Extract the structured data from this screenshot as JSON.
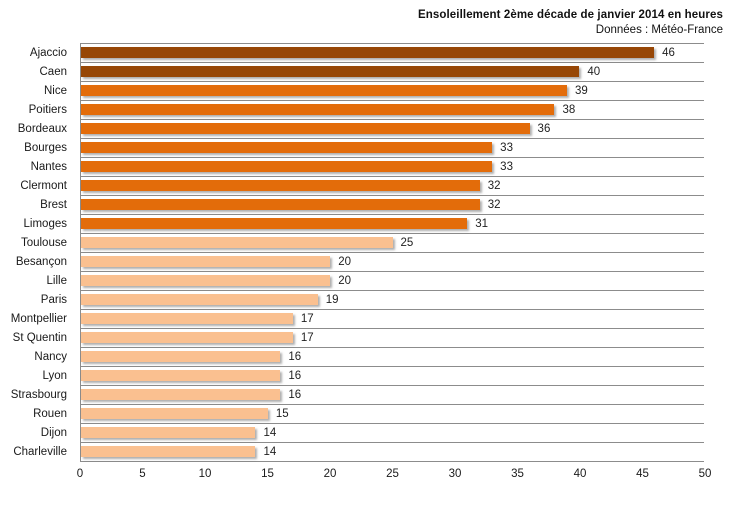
{
  "header": {
    "title": "Ensoleillement 2ème décade de janvier 2014 en heures",
    "subtitle": "Données : Météo-France"
  },
  "chart_data": {
    "type": "bar",
    "orientation": "horizontal",
    "title": "Ensoleillement 2ème décade de janvier 2014 en heures",
    "subtitle": "Données : Météo-France",
    "categories": [
      "Ajaccio",
      "Caen",
      "Nice",
      "Poitiers",
      "Bordeaux",
      "Bourges",
      "Nantes",
      "Clermont",
      "Brest",
      "Limoges",
      "Toulouse",
      "Besançon",
      "Lille",
      "Paris",
      "Montpellier",
      "St Quentin",
      "Nancy",
      "Lyon",
      "Strasbourg",
      "Rouen",
      "Dijon",
      "Charleville"
    ],
    "values": [
      46,
      40,
      39,
      38,
      36,
      33,
      33,
      32,
      32,
      31,
      25,
      20,
      20,
      19,
      17,
      17,
      16,
      16,
      16,
      15,
      14,
      14
    ],
    "bar_colors": [
      "#974706",
      "#974706",
      "#E36C0A",
      "#E36C0A",
      "#E36C0A",
      "#E36C0A",
      "#E36C0A",
      "#E36C0A",
      "#E36C0A",
      "#E36C0A",
      "#FAC090",
      "#FAC090",
      "#FAC090",
      "#FAC090",
      "#FAC090",
      "#FAC090",
      "#FAC090",
      "#FAC090",
      "#FAC090",
      "#FAC090",
      "#FAC090",
      "#FAC090"
    ],
    "xlabel": "",
    "ylabel": "",
    "xlim": [
      0,
      50
    ],
    "xticks": [
      0,
      5,
      10,
      15,
      20,
      25,
      30,
      35,
      40,
      45,
      50
    ],
    "grid": "horizontal category separator lines",
    "legend": "none",
    "value_labels": true
  },
  "colors": {
    "dark_bar": "#974706",
    "medium_bar": "#E36C0A",
    "light_bar": "#FAC090",
    "gridline": "#8C8C8C",
    "text": "#1a1a1a",
    "background": "#FFFFFF"
  }
}
